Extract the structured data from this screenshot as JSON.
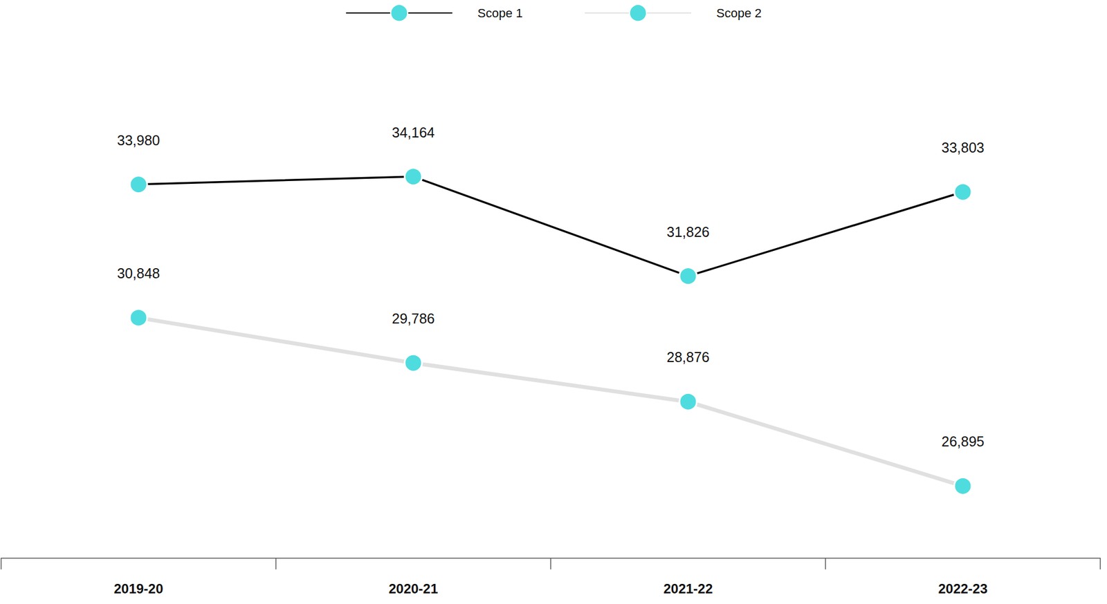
{
  "chart_data": {
    "type": "line",
    "categories": [
      "2019-20",
      "2020-21",
      "2021-22",
      "2022-23"
    ],
    "series": [
      {
        "name": "Scope 1",
        "color": "#000000",
        "values": [
          33980,
          34164,
          31826,
          33803
        ],
        "value_labels": [
          "33,980",
          "34,164",
          "31,826",
          "33,803"
        ]
      },
      {
        "name": "Scope 2",
        "color": "#e0e0e0",
        "values": [
          30848,
          29786,
          28876,
          26895
        ],
        "value_labels": [
          "30,848",
          "29,786",
          "28,876",
          "26,895"
        ]
      }
    ],
    "ylim": [
      25200,
      37800
    ],
    "grid": false,
    "legend": "top",
    "data_labels": true,
    "tick_labels": "x",
    "marker": "circle"
  }
}
